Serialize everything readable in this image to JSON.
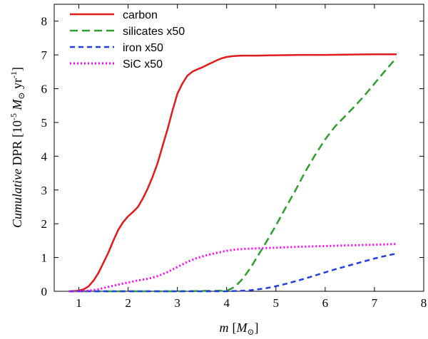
{
  "chart_data": {
    "type": "line",
    "title": "",
    "xlabel": {
      "var": "m",
      "unit_open": "[",
      "unit_sym": "M",
      "unit_sub": "⊙",
      "unit_close": "]"
    },
    "ylabel": {
      "prefix": "Cumulative",
      "main": " DPR [10",
      "exp": "-5",
      "unit_sym": " M",
      "unit_sub": "⊙",
      "unit_yr": " yr",
      "unit_exp": "-1",
      "close": "]"
    },
    "xlim": [
      0.5,
      8
    ],
    "ylim": [
      0,
      8.5
    ],
    "xticks": [
      1,
      2,
      3,
      4,
      5,
      6,
      7,
      8
    ],
    "yticks": [
      0,
      1,
      2,
      3,
      4,
      5,
      6,
      7,
      8
    ],
    "grid": false,
    "legend_position": "top-left",
    "series": [
      {
        "name": "carbon",
        "color": "#e31a1c",
        "dash": "solid",
        "x": [
          0.8,
          1.0,
          1.1,
          1.2,
          1.3,
          1.4,
          1.5,
          1.6,
          1.7,
          1.8,
          1.9,
          2.0,
          2.1,
          2.2,
          2.3,
          2.4,
          2.5,
          2.6,
          2.7,
          2.8,
          2.9,
          3.0,
          3.1,
          3.2,
          3.3,
          3.4,
          3.5,
          3.6,
          3.7,
          3.8,
          3.9,
          4.0,
          4.1,
          4.2,
          4.3,
          4.4,
          4.6,
          5.0,
          5.5,
          6.0,
          6.5,
          7.0,
          7.45
        ],
        "y": [
          0,
          0.02,
          0.06,
          0.15,
          0.32,
          0.55,
          0.85,
          1.15,
          1.5,
          1.82,
          2.05,
          2.22,
          2.35,
          2.5,
          2.75,
          3.05,
          3.4,
          3.8,
          4.3,
          4.8,
          5.35,
          5.85,
          6.15,
          6.38,
          6.5,
          6.57,
          6.63,
          6.7,
          6.77,
          6.84,
          6.9,
          6.94,
          6.96,
          6.97,
          6.98,
          6.98,
          6.98,
          6.99,
          7.0,
          7.0,
          7.01,
          7.02,
          7.02
        ]
      },
      {
        "name": "silicates x50",
        "color": "#2ca02c",
        "dash": "long",
        "x": [
          0.8,
          2.0,
          3.0,
          4.0,
          4.1,
          4.2,
          4.3,
          4.4,
          4.5,
          4.6,
          4.8,
          5.0,
          5.2,
          5.4,
          5.6,
          5.8,
          6.0,
          6.2,
          6.4,
          6.6,
          6.8,
          7.0,
          7.2,
          7.45
        ],
        "y": [
          0,
          0,
          0,
          0.02,
          0.08,
          0.18,
          0.33,
          0.52,
          0.73,
          0.97,
          1.45,
          1.95,
          2.48,
          3.0,
          3.55,
          4.05,
          4.5,
          4.88,
          5.18,
          5.48,
          5.8,
          6.15,
          6.5,
          6.92
        ]
      },
      {
        "name": "iron x50",
        "color": "#1f3fe0",
        "dash": "medium",
        "x": [
          0.8,
          2.0,
          3.0,
          4.0,
          4.2,
          4.4,
          4.6,
          4.8,
          5.0,
          5.2,
          5.4,
          5.6,
          5.8,
          6.0,
          6.2,
          6.4,
          6.6,
          6.8,
          7.0,
          7.2,
          7.45
        ],
        "y": [
          0,
          0,
          0,
          0,
          0.01,
          0.02,
          0.05,
          0.09,
          0.15,
          0.22,
          0.3,
          0.38,
          0.47,
          0.56,
          0.65,
          0.73,
          0.81,
          0.89,
          0.97,
          1.04,
          1.12
        ]
      },
      {
        "name": "SiC x50",
        "color": "#ff00ff",
        "dash": "dotted",
        "x": [
          0.8,
          1.0,
          1.2,
          1.4,
          1.6,
          1.8,
          2.0,
          2.2,
          2.4,
          2.6,
          2.8,
          3.0,
          3.2,
          3.4,
          3.6,
          3.8,
          4.0,
          4.2,
          4.4,
          4.6,
          5.0,
          5.5,
          6.0,
          6.5,
          7.0,
          7.45
        ],
        "y": [
          0,
          0,
          0.02,
          0.06,
          0.13,
          0.2,
          0.26,
          0.32,
          0.37,
          0.45,
          0.57,
          0.72,
          0.87,
          0.99,
          1.07,
          1.14,
          1.2,
          1.24,
          1.26,
          1.27,
          1.29,
          1.32,
          1.34,
          1.36,
          1.38,
          1.4
        ]
      }
    ]
  }
}
